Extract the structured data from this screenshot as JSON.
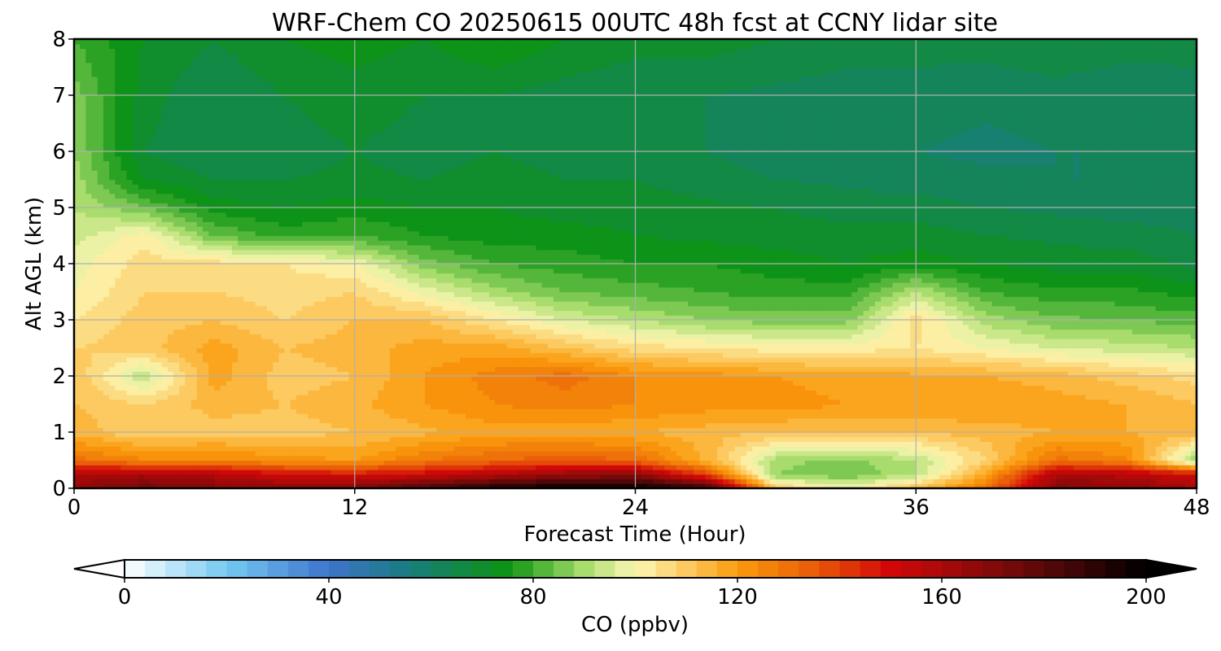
{
  "chart_data": {
    "type": "heatmap",
    "title": "WRF-Chem CO  20250615 00UTC 48h fcst at CCNY lidar site",
    "xlabel": "Forecast Time (Hour)",
    "ylabel": "Alt AGL (km)",
    "xlim": [
      0,
      48
    ],
    "ylim": [
      0,
      8
    ],
    "x_ticks": [
      0,
      12,
      24,
      36,
      48
    ],
    "y_ticks": [
      0,
      1,
      2,
      3,
      4,
      5,
      6,
      7,
      8
    ],
    "grid": true,
    "x": [
      0,
      3,
      6,
      9,
      12,
      15,
      18,
      21,
      24,
      27,
      30,
      33,
      36,
      39,
      42,
      45,
      48
    ],
    "y": [
      0,
      0.25,
      0.5,
      1,
      1.5,
      2,
      2.5,
      3,
      3.5,
      4,
      4.5,
      5,
      5.5,
      6,
      7,
      8
    ],
    "values": [
      [
        165,
        175,
        170,
        168,
        172,
        185,
        195,
        200,
        200,
        190,
        110,
        100,
        112,
        130,
        170,
        168,
        160
      ],
      [
        160,
        162,
        158,
        150,
        148,
        152,
        158,
        165,
        168,
        140,
        88,
        84,
        92,
        118,
        160,
        158,
        150
      ],
      [
        130,
        125,
        125,
        122,
        120,
        128,
        132,
        135,
        132,
        115,
        90,
        86,
        92,
        108,
        130,
        125,
        88
      ],
      [
        115,
        108,
        110,
        110,
        112,
        115,
        118,
        118,
        116,
        114,
        112,
        112,
        112,
        114,
        116,
        116,
        114
      ],
      [
        112,
        108,
        114,
        112,
        115,
        120,
        124,
        126,
        124,
        122,
        122,
        120,
        120,
        120,
        118,
        116,
        112
      ],
      [
        112,
        92,
        118,
        110,
        112,
        120,
        126,
        130,
        124,
        122,
        120,
        118,
        117,
        116,
        114,
        110,
        106
      ],
      [
        108,
        110,
        118,
        112,
        114,
        118,
        118,
        112,
        106,
        104,
        102,
        102,
        104,
        100,
        96,
        94,
        92
      ],
      [
        104,
        110,
        112,
        108,
        112,
        112,
        104,
        96,
        92,
        88,
        86,
        86,
        106,
        90,
        85,
        84,
        82
      ],
      [
        100,
        108,
        108,
        106,
        108,
        98,
        90,
        84,
        82,
        80,
        78,
        78,
        92,
        80,
        77,
        77,
        74
      ],
      [
        98,
        106,
        106,
        104,
        100,
        86,
        80,
        78,
        76,
        76,
        74,
        72,
        74,
        72,
        70,
        70,
        67
      ],
      [
        94,
        102,
        84,
        78,
        80,
        76,
        74,
        74,
        72,
        71,
        70,
        70,
        70,
        68,
        67,
        66,
        64
      ],
      [
        92,
        84,
        74,
        72,
        74,
        72,
        72,
        70,
        70,
        69,
        68,
        66,
        66,
        64,
        63,
        62,
        62
      ],
      [
        90,
        72,
        68,
        68,
        69,
        68,
        70,
        68,
        68,
        66,
        64,
        63,
        62,
        61,
        60,
        60,
        60
      ],
      [
        88,
        68,
        64,
        66,
        68,
        66,
        68,
        66,
        66,
        64,
        62,
        60,
        60,
        59,
        60,
        60,
        61
      ],
      [
        86,
        70,
        64,
        68,
        70,
        68,
        68,
        66,
        64,
        64,
        63,
        62,
        62,
        61,
        62,
        61,
        62
      ],
      [
        80,
        72,
        68,
        72,
        74,
        72,
        76,
        72,
        70,
        70,
        68,
        66,
        66,
        66,
        68,
        66,
        66
      ]
    ],
    "colorbar": {
      "label": "CO  (ppbv)",
      "range": [
        0,
        200
      ],
      "ticks": [
        0,
        40,
        80,
        120,
        160,
        200
      ],
      "extend": "both",
      "orientation": "horizontal",
      "colors": [
        {
          "v": 0,
          "c": "#ffffff"
        },
        {
          "v": 20,
          "c": "#74c9f2"
        },
        {
          "v": 40,
          "c": "#3e74cc"
        },
        {
          "v": 55,
          "c": "#1a7c82"
        },
        {
          "v": 75,
          "c": "#0c9412"
        },
        {
          "v": 90,
          "c": "#a8dc6c"
        },
        {
          "v": 100,
          "c": "#fcf8b4"
        },
        {
          "v": 120,
          "c": "#fb9b0c"
        },
        {
          "v": 135,
          "c": "#e85c08"
        },
        {
          "v": 150,
          "c": "#d20808"
        },
        {
          "v": 175,
          "c": "#6e0a0a"
        },
        {
          "v": 200,
          "c": "#000000"
        }
      ]
    }
  }
}
